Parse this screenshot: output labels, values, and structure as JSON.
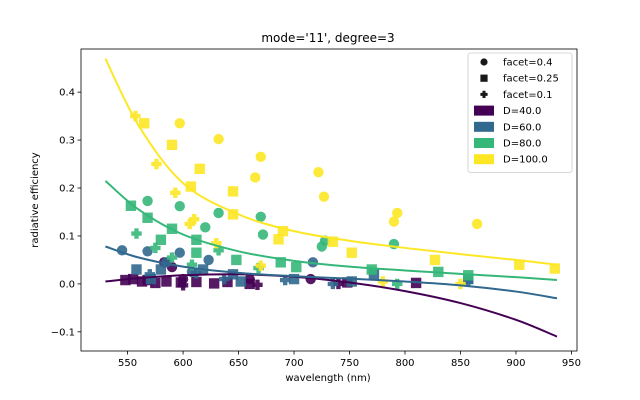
{
  "chart_data": {
    "type": "scatter",
    "title": "mode='11', degree=3",
    "xlabel": "wavelength (nm)",
    "ylabel": "radiative efficiency",
    "xlim": [
      508,
      955
    ],
    "ylim": [
      -0.14,
      0.49
    ],
    "xticks": [
      550,
      600,
      650,
      700,
      750,
      800,
      850,
      900,
      950
    ],
    "yticks": [
      -0.1,
      0.0,
      0.1,
      0.2,
      0.3,
      0.4
    ],
    "ytick_labels": [
      "−0.1",
      "0.0",
      "0.1",
      "0.2",
      "0.3",
      "0.4"
    ],
    "grid": false,
    "legend_position": "top-right",
    "facet_legend": [
      {
        "label": "facet=0.4",
        "marker": "circle"
      },
      {
        "label": "facet=0.25",
        "marker": "square"
      },
      {
        "label": "facet=0.1",
        "marker": "plus"
      }
    ],
    "series": [
      {
        "name": "D=40.0",
        "color": "#440154",
        "fit": {
          "x": [
            530,
            560,
            600,
            650,
            700,
            750,
            800,
            850,
            900,
            937
          ],
          "y": [
            0.005,
            0.012,
            0.018,
            0.02,
            0.015,
            0.003,
            -0.015,
            -0.04,
            -0.075,
            -0.11
          ]
        },
        "points": [
          {
            "x": 548,
            "y": 0.008,
            "m": "square"
          },
          {
            "x": 555,
            "y": 0.01,
            "m": "square"
          },
          {
            "x": 563,
            "y": 0.005,
            "m": "square"
          },
          {
            "x": 568,
            "y": 0.008,
            "m": "square"
          },
          {
            "x": 575,
            "y": 0.002,
            "m": "square"
          },
          {
            "x": 585,
            "y": 0.005,
            "m": "square"
          },
          {
            "x": 598,
            "y": 0.003,
            "m": "square"
          },
          {
            "x": 612,
            "y": 0.004,
            "m": "square"
          },
          {
            "x": 628,
            "y": 0.001,
            "m": "square"
          },
          {
            "x": 640,
            "y": 0.004,
            "m": "square"
          },
          {
            "x": 660,
            "y": 0.0,
            "m": "square"
          },
          {
            "x": 748,
            "y": 0.003,
            "m": "square"
          },
          {
            "x": 810,
            "y": 0.002,
            "m": "square"
          },
          {
            "x": 583,
            "y": 0.045,
            "m": "circle"
          },
          {
            "x": 590,
            "y": 0.035,
            "m": "circle"
          },
          {
            "x": 600,
            "y": 0.01,
            "m": "circle"
          },
          {
            "x": 660,
            "y": 0.01,
            "m": "circle"
          },
          {
            "x": 715,
            "y": 0.01,
            "m": "circle"
          },
          {
            "x": 600,
            "y": -0.003,
            "m": "plus"
          },
          {
            "x": 667,
            "y": -0.002,
            "m": "plus"
          },
          {
            "x": 740,
            "y": 0.0,
            "m": "plus"
          }
        ]
      },
      {
        "name": "D=60.0",
        "color": "#31688e",
        "fit": {
          "x": [
            530,
            560,
            600,
            650,
            700,
            750,
            800,
            850,
            900,
            937
          ],
          "y": [
            0.078,
            0.055,
            0.036,
            0.023,
            0.016,
            0.011,
            0.005,
            -0.003,
            -0.016,
            -0.03
          ]
        },
        "points": [
          {
            "x": 545,
            "y": 0.07,
            "m": "circle"
          },
          {
            "x": 568,
            "y": 0.068,
            "m": "circle"
          },
          {
            "x": 585,
            "y": 0.045,
            "m": "circle"
          },
          {
            "x": 597,
            "y": 0.065,
            "m": "circle"
          },
          {
            "x": 623,
            "y": 0.05,
            "m": "circle"
          },
          {
            "x": 608,
            "y": 0.025,
            "m": "circle"
          },
          {
            "x": 717,
            "y": 0.045,
            "m": "circle"
          },
          {
            "x": 558,
            "y": 0.03,
            "m": "square"
          },
          {
            "x": 571,
            "y": 0.01,
            "m": "square"
          },
          {
            "x": 580,
            "y": 0.03,
            "m": "square"
          },
          {
            "x": 618,
            "y": 0.03,
            "m": "square"
          },
          {
            "x": 645,
            "y": 0.02,
            "m": "square"
          },
          {
            "x": 652,
            "y": 0.005,
            "m": "square"
          },
          {
            "x": 700,
            "y": 0.01,
            "m": "square"
          },
          {
            "x": 752,
            "y": 0.005,
            "m": "square"
          },
          {
            "x": 772,
            "y": 0.02,
            "m": "square"
          },
          {
            "x": 857,
            "y": 0.01,
            "m": "square"
          },
          {
            "x": 570,
            "y": 0.02,
            "m": "plus"
          },
          {
            "x": 612,
            "y": 0.022,
            "m": "plus"
          },
          {
            "x": 637,
            "y": 0.01,
            "m": "plus"
          },
          {
            "x": 692,
            "y": 0.008,
            "m": "plus"
          },
          {
            "x": 735,
            "y": 0.0,
            "m": "plus"
          },
          {
            "x": 857,
            "y": 0.005,
            "m": "plus"
          }
        ]
      },
      {
        "name": "D=80.0",
        "color": "#35b779",
        "fit": {
          "x": [
            530,
            560,
            600,
            650,
            700,
            750,
            800,
            850,
            900,
            937
          ],
          "y": [
            0.215,
            0.155,
            0.103,
            0.068,
            0.048,
            0.036,
            0.028,
            0.021,
            0.014,
            0.008
          ]
        },
        "points": [
          {
            "x": 568,
            "y": 0.173,
            "m": "circle"
          },
          {
            "x": 597,
            "y": 0.162,
            "m": "circle"
          },
          {
            "x": 620,
            "y": 0.118,
            "m": "circle"
          },
          {
            "x": 632,
            "y": 0.148,
            "m": "circle"
          },
          {
            "x": 670,
            "y": 0.14,
            "m": "circle"
          },
          {
            "x": 672,
            "y": 0.103,
            "m": "circle"
          },
          {
            "x": 728,
            "y": 0.09,
            "m": "circle"
          },
          {
            "x": 725,
            "y": 0.078,
            "m": "circle"
          },
          {
            "x": 790,
            "y": 0.083,
            "m": "circle"
          },
          {
            "x": 553,
            "y": 0.163,
            "m": "square"
          },
          {
            "x": 568,
            "y": 0.138,
            "m": "square"
          },
          {
            "x": 580,
            "y": 0.092,
            "m": "square"
          },
          {
            "x": 590,
            "y": 0.115,
            "m": "square"
          },
          {
            "x": 612,
            "y": 0.092,
            "m": "square"
          },
          {
            "x": 612,
            "y": 0.065,
            "m": "square"
          },
          {
            "x": 648,
            "y": 0.05,
            "m": "square"
          },
          {
            "x": 688,
            "y": 0.045,
            "m": "square"
          },
          {
            "x": 702,
            "y": 0.035,
            "m": "square"
          },
          {
            "x": 770,
            "y": 0.03,
            "m": "square"
          },
          {
            "x": 830,
            "y": 0.025,
            "m": "square"
          },
          {
            "x": 857,
            "y": 0.018,
            "m": "square"
          },
          {
            "x": 558,
            "y": 0.105,
            "m": "plus"
          },
          {
            "x": 575,
            "y": 0.075,
            "m": "plus"
          },
          {
            "x": 590,
            "y": 0.055,
            "m": "plus"
          },
          {
            "x": 608,
            "y": 0.04,
            "m": "plus"
          },
          {
            "x": 632,
            "y": 0.07,
            "m": "plus"
          },
          {
            "x": 668,
            "y": 0.033,
            "m": "plus"
          },
          {
            "x": 793,
            "y": 0.0,
            "m": "plus"
          }
        ]
      },
      {
        "name": "D=100.0",
        "color": "#fde725",
        "fit": {
          "x": [
            530,
            560,
            600,
            650,
            700,
            750,
            800,
            850,
            900,
            937
          ],
          "y": [
            0.47,
            0.33,
            0.21,
            0.145,
            0.11,
            0.09,
            0.075,
            0.062,
            0.05,
            0.04
          ]
        },
        "points": [
          {
            "x": 597,
            "y": 0.335,
            "m": "circle"
          },
          {
            "x": 632,
            "y": 0.302,
            "m": "circle"
          },
          {
            "x": 670,
            "y": 0.265,
            "m": "circle"
          },
          {
            "x": 665,
            "y": 0.222,
            "m": "circle"
          },
          {
            "x": 722,
            "y": 0.233,
            "m": "circle"
          },
          {
            "x": 727,
            "y": 0.182,
            "m": "circle"
          },
          {
            "x": 793,
            "y": 0.148,
            "m": "circle"
          },
          {
            "x": 790,
            "y": 0.13,
            "m": "circle"
          },
          {
            "x": 865,
            "y": 0.125,
            "m": "circle"
          },
          {
            "x": 565,
            "y": 0.335,
            "m": "square"
          },
          {
            "x": 590,
            "y": 0.29,
            "m": "square"
          },
          {
            "x": 607,
            "y": 0.203,
            "m": "square"
          },
          {
            "x": 615,
            "y": 0.24,
            "m": "square"
          },
          {
            "x": 645,
            "y": 0.193,
            "m": "square"
          },
          {
            "x": 645,
            "y": 0.145,
            "m": "square"
          },
          {
            "x": 690,
            "y": 0.11,
            "m": "square"
          },
          {
            "x": 686,
            "y": 0.093,
            "m": "square"
          },
          {
            "x": 735,
            "y": 0.088,
            "m": "square"
          },
          {
            "x": 752,
            "y": 0.065,
            "m": "square"
          },
          {
            "x": 827,
            "y": 0.05,
            "m": "square"
          },
          {
            "x": 903,
            "y": 0.04,
            "m": "square"
          },
          {
            "x": 935,
            "y": 0.032,
            "m": "square"
          },
          {
            "x": 557,
            "y": 0.35,
            "m": "plus"
          },
          {
            "x": 576,
            "y": 0.25,
            "m": "plus"
          },
          {
            "x": 593,
            "y": 0.19,
            "m": "plus"
          },
          {
            "x": 610,
            "y": 0.135,
            "m": "plus"
          },
          {
            "x": 606,
            "y": 0.125,
            "m": "plus"
          },
          {
            "x": 630,
            "y": 0.085,
            "m": "plus"
          },
          {
            "x": 670,
            "y": 0.038,
            "m": "plus"
          },
          {
            "x": 780,
            "y": 0.005,
            "m": "plus"
          },
          {
            "x": 850,
            "y": 0.0,
            "m": "plus"
          }
        ]
      }
    ]
  }
}
